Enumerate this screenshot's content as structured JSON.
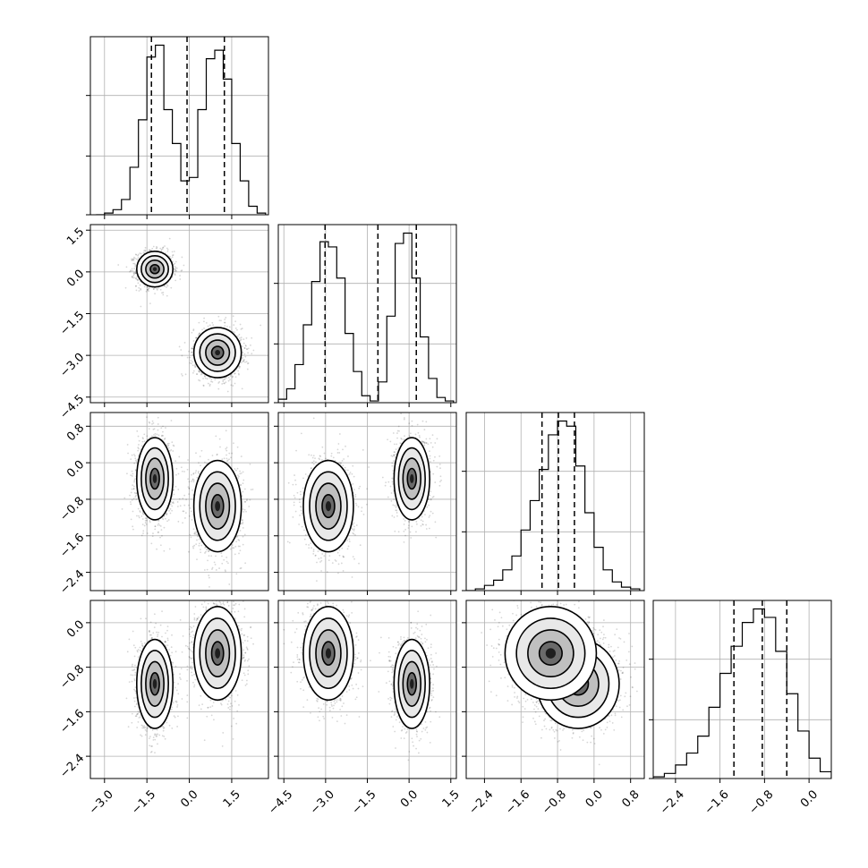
{
  "chart_data": {
    "type": "corner",
    "dims": [
      {
        "ticks": [
          -3.0,
          -1.5,
          0.0,
          1.5
        ],
        "tick_labels": [
          "−3.0",
          "−1.5",
          "0.0",
          "1.5"
        ],
        "range": [
          -3.5,
          2.8
        ],
        "quantiles": [
          -1.34,
          -0.08,
          1.24
        ],
        "hist_x": [
          -3.3,
          -3.0,
          -2.7,
          -2.4,
          -2.1,
          -1.8,
          -1.5,
          -1.2,
          -0.9,
          -0.6,
          -0.3,
          0.0,
          0.3,
          0.6,
          0.9,
          1.2,
          1.5,
          1.8,
          2.1,
          2.4,
          2.7
        ],
        "hist": [
          0,
          0.01,
          0.03,
          0.09,
          0.28,
          0.56,
          0.93,
          1.0,
          0.62,
          0.42,
          0.2,
          0.22,
          0.62,
          0.92,
          0.97,
          0.8,
          0.42,
          0.2,
          0.05,
          0.01
        ]
      },
      {
        "ticks": [
          -4.5,
          -3.0,
          -1.5,
          0.0,
          1.5
        ],
        "tick_labels": [
          "−4.5",
          "−3.0",
          "−1.5",
          "0.0",
          "1.5"
        ],
        "range": [
          -4.7,
          1.7
        ],
        "quantiles": [
          -3.02,
          -1.12,
          0.26
        ],
        "hist_x": [
          -4.7,
          -4.4,
          -4.1,
          -3.8,
          -3.5,
          -3.2,
          -2.9,
          -2.6,
          -2.3,
          -2.0,
          -1.7,
          -1.4,
          -1.1,
          -0.8,
          -0.5,
          -0.2,
          0.1,
          0.4,
          0.7,
          1.0,
          1.3,
          1.6
        ],
        "hist": [
          0.02,
          0.08,
          0.22,
          0.45,
          0.7,
          0.93,
          0.9,
          0.72,
          0.4,
          0.18,
          0.04,
          0.01,
          0.12,
          0.5,
          0.92,
          0.98,
          0.72,
          0.38,
          0.14,
          0.03,
          0.01
        ]
      },
      {
        "ticks": [
          -2.4,
          -1.6,
          -0.8,
          0.0,
          0.8
        ],
        "tick_labels": [
          "−2.4",
          "−1.6",
          "−0.8",
          "0.0",
          "0.8"
        ],
        "range": [
          -2.8,
          1.1
        ],
        "quantiles": [
          -1.14,
          -0.78,
          -0.43
        ],
        "hist_x": [
          -2.8,
          -2.6,
          -2.4,
          -2.2,
          -2.0,
          -1.8,
          -1.6,
          -1.4,
          -1.2,
          -1.0,
          -0.8,
          -0.6,
          -0.4,
          -0.2,
          0.0,
          0.2,
          0.4,
          0.6,
          0.8,
          1.0
        ],
        "hist": [
          0,
          0.01,
          0.03,
          0.06,
          0.12,
          0.2,
          0.35,
          0.52,
          0.7,
          0.9,
          0.98,
          0.95,
          0.72,
          0.45,
          0.25,
          0.12,
          0.05,
          0.02,
          0.01
        ]
      },
      {
        "ticks": [
          -2.4,
          -1.6,
          -0.8,
          0.0
        ],
        "tick_labels": [
          "−2.4",
          "−1.6",
          "−0.8",
          "0.0"
        ],
        "range": [
          -2.8,
          0.4
        ],
        "quantiles": [
          -1.35,
          -0.84,
          -0.4
        ],
        "hist_x": [
          -2.8,
          -2.6,
          -2.4,
          -2.2,
          -2.0,
          -1.8,
          -1.6,
          -1.4,
          -1.2,
          -1.0,
          -0.8,
          -0.6,
          -0.4,
          -0.2,
          0.0,
          0.2,
          0.4
        ],
        "hist": [
          0.01,
          0.03,
          0.08,
          0.15,
          0.25,
          0.42,
          0.62,
          0.78,
          0.92,
          1.0,
          0.95,
          0.75,
          0.5,
          0.28,
          0.12,
          0.04
        ]
      }
    ],
    "components": [
      {
        "weight": 0.5,
        "mean": [
          -1.22,
          0.1,
          -0.35,
          -1.1
        ],
        "sd": [
          0.32,
          0.32,
          0.45,
          0.4
        ],
        "corr_01": 0.2
      },
      {
        "weight": 0.5,
        "mean": [
          1.0,
          -2.9,
          -0.95,
          -0.55
        ],
        "sd": [
          0.42,
          0.45,
          0.5,
          0.42
        ],
        "corr_01": 0.2
      }
    ],
    "hist_yticks": [
      0.33,
      0.67
    ],
    "grid": true
  }
}
